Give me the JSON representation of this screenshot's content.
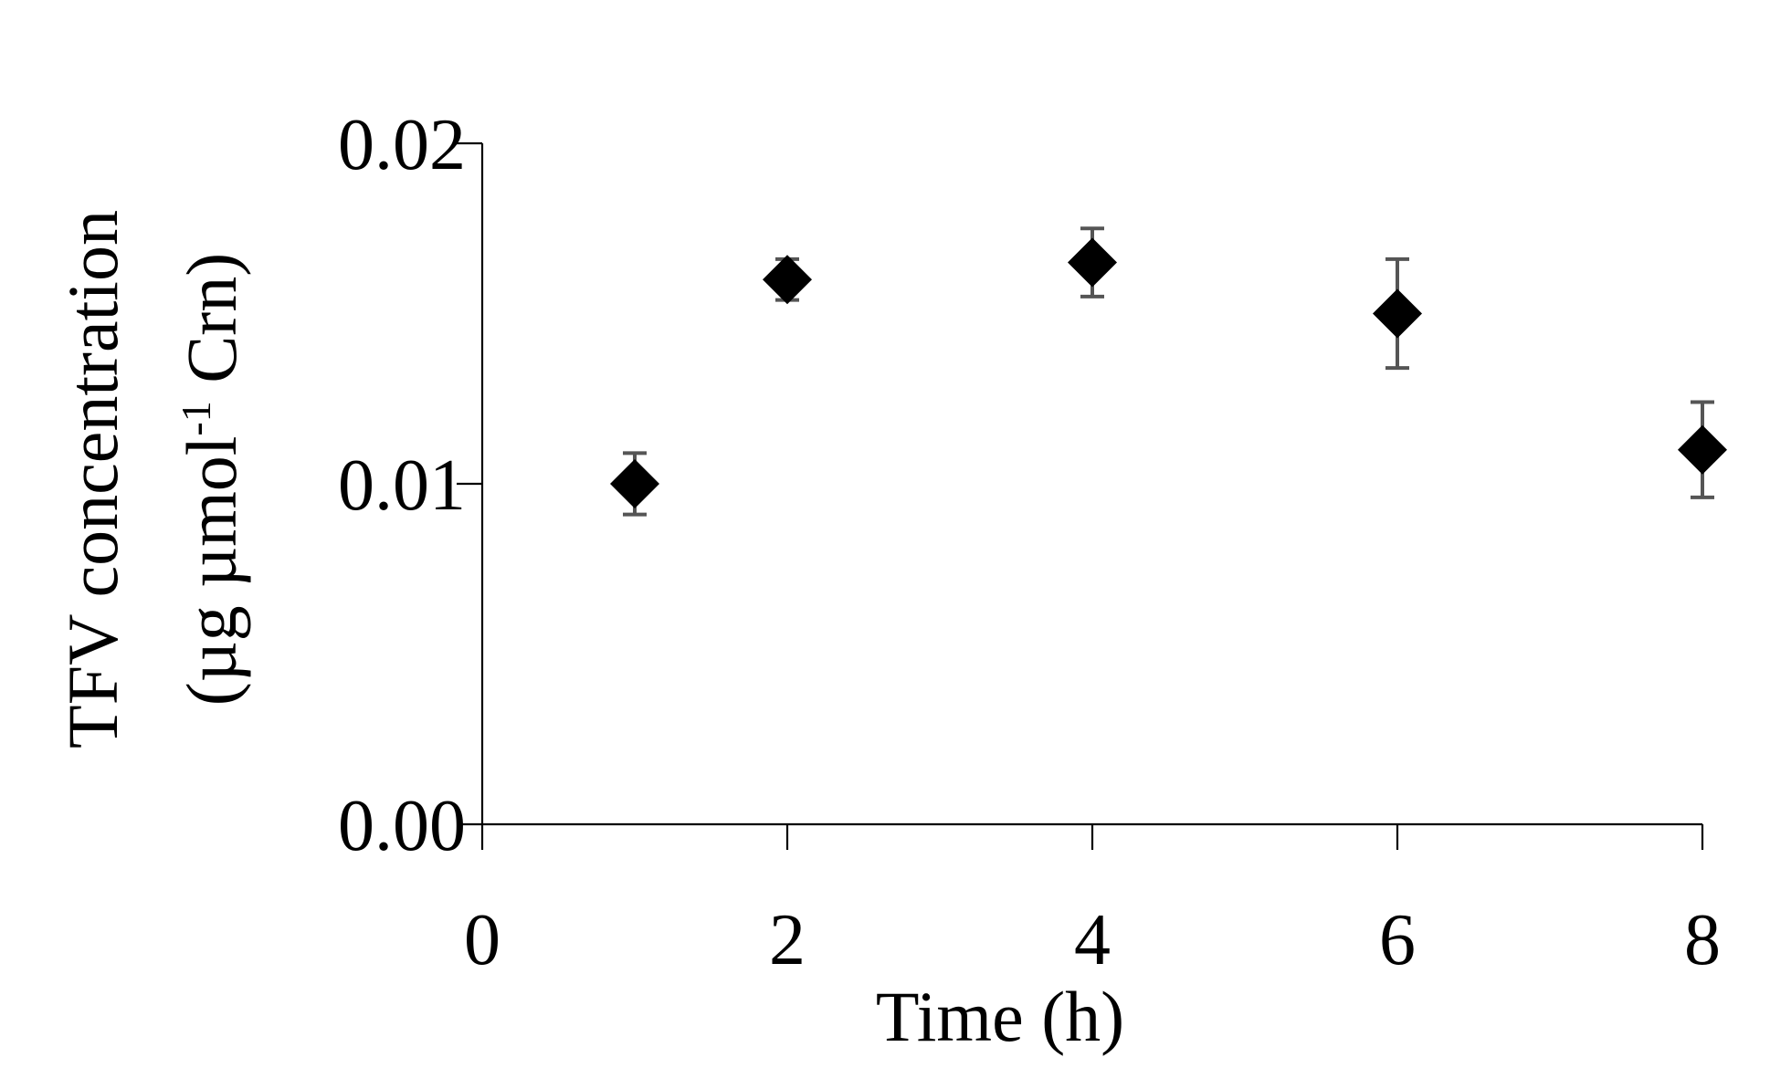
{
  "chart_data": {
    "type": "scatter",
    "xlabel": "Time (h)",
    "ylabel_line1": "TFV concentration",
    "ylabel_line2_pre": "(µg µmol",
    "ylabel_line2_sup": "-1",
    "ylabel_line2_post": " Crn)",
    "xlim": [
      0,
      8
    ],
    "ylim": [
      0,
      0.02
    ],
    "x_ticks": [
      0,
      2,
      4,
      6,
      8
    ],
    "x_tick_labels": [
      "0",
      "2",
      "4",
      "6",
      "8"
    ],
    "y_ticks": [
      0,
      0.01,
      0.02
    ],
    "y_tick_labels": [
      "0.00",
      "0.01",
      "0.02"
    ],
    "grid": false,
    "legend": "none",
    "marker": "diamond",
    "marker_color": "#000000",
    "errorbar_color": "#555555",
    "axis_color": "#000000",
    "series": [
      {
        "x": [
          1,
          2,
          4,
          6,
          8
        ],
        "y": [
          0.01,
          0.016,
          0.0165,
          0.015,
          0.011
        ],
        "yerr": [
          0.0009,
          0.0006,
          0.001,
          0.0016,
          0.0014
        ]
      }
    ]
  }
}
